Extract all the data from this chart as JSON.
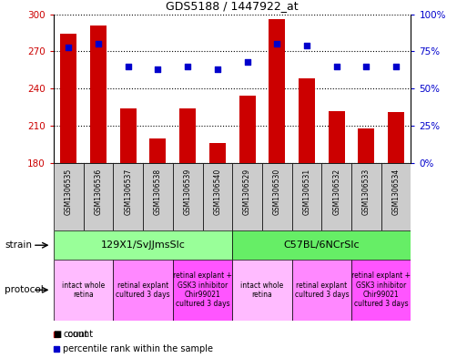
{
  "title": "GDS5188 / 1447922_at",
  "samples": [
    "GSM1306535",
    "GSM1306536",
    "GSM1306537",
    "GSM1306538",
    "GSM1306539",
    "GSM1306540",
    "GSM1306529",
    "GSM1306530",
    "GSM1306531",
    "GSM1306532",
    "GSM1306533",
    "GSM1306534"
  ],
  "counts": [
    284,
    291,
    224,
    200,
    224,
    196,
    234,
    296,
    248,
    222,
    208,
    221
  ],
  "percentile_ranks": [
    78,
    80,
    65,
    63,
    65,
    63,
    68,
    80,
    79,
    65,
    65,
    65
  ],
  "ymin": 180,
  "ymax": 300,
  "yticks": [
    180,
    210,
    240,
    270,
    300
  ],
  "y2min": 0,
  "y2max": 100,
  "y2ticks": [
    0,
    25,
    50,
    75,
    100
  ],
  "bar_color": "#cc0000",
  "scatter_color": "#0000cc",
  "strain_groups": [
    {
      "label": "129X1/SvJJmsSlc",
      "start": 0,
      "end": 6,
      "color": "#99ff99"
    },
    {
      "label": "C57BL/6NCrSlc",
      "start": 6,
      "end": 12,
      "color": "#66ee66"
    }
  ],
  "protocol_groups": [
    {
      "label": "intact whole\nretina",
      "start": 0,
      "end": 2,
      "color": "#ffbbff"
    },
    {
      "label": "retinal explant\ncultured 3 days",
      "start": 2,
      "end": 4,
      "color": "#ff88ff"
    },
    {
      "label": "retinal explant +\nGSK3 inhibitor\nChir99021\ncultured 3 days",
      "start": 4,
      "end": 6,
      "color": "#ff55ff"
    },
    {
      "label": "intact whole\nretina",
      "start": 6,
      "end": 8,
      "color": "#ffbbff"
    },
    {
      "label": "retinal explant\ncultured 3 days",
      "start": 8,
      "end": 10,
      "color": "#ff88ff"
    },
    {
      "label": "retinal explant +\nGSK3 inhibitor\nChir99021\ncultured 3 days",
      "start": 10,
      "end": 12,
      "color": "#ff55ff"
    }
  ],
  "sample_bg_color": "#cccccc",
  "bg_color": "#ffffff",
  "tick_label_color_left": "#cc0000",
  "tick_label_color_right": "#0000cc"
}
